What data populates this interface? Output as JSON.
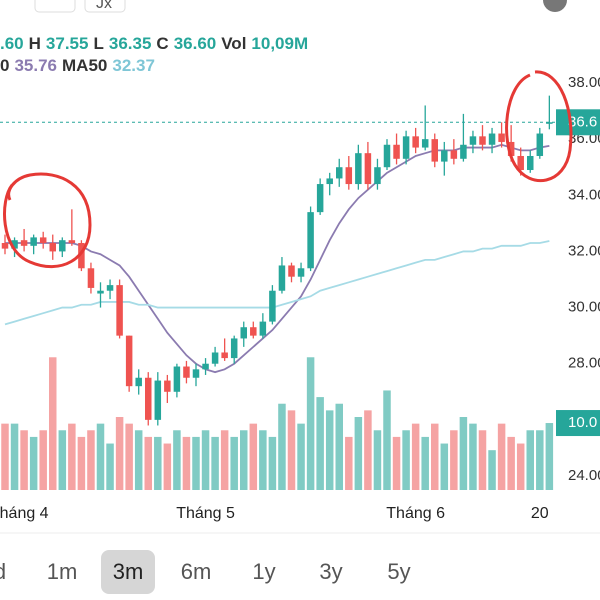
{
  "header": {
    "icon": "Jx",
    "line1": [
      {
        "text": ".60",
        "role": "num"
      },
      {
        "text": "H",
        "role": "key"
      },
      {
        "text": "37.55",
        "role": "num"
      },
      {
        "text": "L",
        "role": "key"
      },
      {
        "text": "36.35",
        "role": "num"
      },
      {
        "text": "C",
        "role": "key"
      },
      {
        "text": "36.60",
        "role": "num"
      },
      {
        "text": "Vol",
        "role": "key"
      },
      {
        "text": "10,09M",
        "role": "num"
      }
    ],
    "line2": [
      {
        "text": "0",
        "role": "key"
      },
      {
        "text": "35.76",
        "role": "ma"
      },
      {
        "text": "MA50",
        "role": "key"
      },
      {
        "text": "32.37",
        "role": "ma50"
      }
    ]
  },
  "chart_data": {
    "type": "candlestick",
    "up_color": "#26a69a",
    "down_color": "#ef5350",
    "volume_up_color": "#80cbc4",
    "volume_down_color": "#f5a3a3",
    "ylim": [
      24,
      38
    ],
    "yticks": [
      {
        "value": 38,
        "label": "38.00"
      },
      {
        "value": 36,
        "label": "36.00"
      },
      {
        "value": 34,
        "label": "34.00"
      },
      {
        "value": 32,
        "label": "32.00"
      },
      {
        "value": 30,
        "label": "30.00"
      },
      {
        "value": 28,
        "label": "28.00"
      },
      {
        "value": 24,
        "label": "24.00"
      }
    ],
    "price_label": "36.6",
    "volume_label": "10.0",
    "volume_ylim": [
      0,
      22
    ],
    "categories": [
      null,
      null,
      "háng 4",
      null,
      null,
      null,
      null,
      null,
      null,
      null,
      null,
      null,
      null,
      null,
      null,
      null,
      null,
      null,
      null,
      null,
      null,
      "Tháng 5",
      null,
      null,
      null,
      null,
      null,
      null,
      null,
      null,
      null,
      null,
      null,
      null,
      null,
      null,
      null,
      null,
      null,
      null,
      null,
      null,
      null,
      "Tháng 6",
      null,
      null,
      null,
      null,
      null,
      null,
      null,
      null,
      null,
      null,
      null,
      null,
      "20",
      null
    ],
    "open": [
      32.3,
      32.1,
      32.4,
      32.2,
      32.5,
      32.3,
      32.0,
      32.4,
      32.3,
      31.4,
      30.5,
      30.6,
      30.8,
      29.0,
      27.2,
      27.5,
      26.0,
      27.4,
      27.0,
      27.9,
      27.5,
      27.8,
      28.0,
      28.4,
      28.2,
      28.9,
      29.3,
      29.0,
      29.5,
      30.6,
      31.5,
      31.1,
      31.4,
      33.4,
      34.4,
      34.6,
      35.0,
      34.4,
      35.5,
      34.4,
      35.0,
      35.8,
      35.3,
      36.1,
      35.7,
      36.0,
      35.2,
      35.6,
      35.3,
      35.8,
      36.1,
      35.8,
      36.2,
      35.9,
      35.4,
      34.9,
      35.4,
      36.6
    ],
    "high": [
      32.6,
      32.5,
      32.8,
      32.6,
      32.7,
      32.6,
      32.5,
      33.5,
      32.4,
      31.6,
      30.9,
      31.0,
      31.0,
      29.0,
      27.8,
      27.7,
      27.7,
      27.6,
      28.0,
      28.1,
      28.0,
      28.2,
      28.6,
      28.9,
      29.0,
      29.5,
      29.5,
      29.8,
      30.8,
      31.8,
      31.6,
      31.6,
      33.6,
      34.6,
      34.8,
      35.3,
      35.4,
      35.8,
      35.9,
      35.3,
      36.0,
      36.2,
      36.3,
      36.4,
      37.2,
      36.2,
      35.9,
      36.0,
      36.9,
      36.3,
      36.5,
      36.4,
      36.6,
      36.5,
      35.7,
      35.6,
      36.4,
      37.55
    ],
    "low": [
      31.9,
      31.8,
      32.0,
      31.9,
      32.1,
      31.7,
      31.8,
      32.2,
      31.3,
      30.5,
      30.0,
      30.3,
      28.9,
      27.0,
      26.9,
      25.8,
      25.8,
      26.6,
      26.8,
      27.3,
      27.2,
      27.6,
      27.9,
      28.1,
      28.0,
      28.6,
      28.9,
      28.9,
      29.4,
      30.5,
      30.9,
      30.9,
      31.3,
      33.3,
      34.0,
      34.3,
      34.2,
      34.2,
      34.2,
      34.2,
      34.9,
      35.1,
      35.1,
      35.5,
      35.6,
      35.0,
      34.7,
      35.1,
      35.2,
      35.5,
      35.6,
      35.5,
      35.7,
      35.2,
      34.7,
      34.8,
      35.3,
      36.35
    ],
    "close": [
      32.1,
      32.4,
      32.2,
      32.5,
      32.3,
      32.0,
      32.4,
      32.3,
      31.4,
      30.7,
      30.6,
      30.8,
      29.0,
      27.2,
      27.5,
      26.0,
      27.4,
      27.0,
      27.9,
      27.5,
      27.8,
      28.0,
      28.4,
      28.2,
      28.9,
      29.3,
      29.0,
      29.5,
      30.6,
      31.5,
      31.1,
      31.4,
      33.4,
      34.4,
      34.6,
      35.0,
      34.4,
      35.5,
      34.4,
      35.0,
      35.8,
      35.3,
      36.1,
      35.7,
      36.0,
      35.2,
      35.6,
      35.3,
      35.8,
      36.1,
      35.8,
      36.2,
      35.9,
      35.4,
      34.9,
      35.4,
      36.2,
      36.6
    ],
    "volume": [
      10,
      10,
      9,
      8,
      9,
      20,
      9,
      10,
      8,
      9,
      10,
      7,
      11,
      10,
      9,
      8,
      8,
      7,
      9,
      8,
      8,
      9,
      8,
      9,
      8,
      9,
      10,
      9,
      8,
      13,
      12,
      10,
      20,
      14,
      12,
      13,
      8,
      11,
      12,
      9,
      15,
      8,
      9,
      10,
      8,
      10,
      7,
      9,
      11,
      10,
      9,
      6,
      10,
      8,
      7,
      9,
      9,
      10.09
    ],
    "series": [
      {
        "name": "0",
        "color": "#8b7bb0",
        "values": [
          32.3,
          32.3,
          32.3,
          32.3,
          32.3,
          32.3,
          32.3,
          32.3,
          32.2,
          32.0,
          31.9,
          31.7,
          31.5,
          31.1,
          30.6,
          30.1,
          29.6,
          29.1,
          28.7,
          28.3,
          28.0,
          27.8,
          27.7,
          27.8,
          28.0,
          28.3,
          28.6,
          28.9,
          29.2,
          29.6,
          30.0,
          30.4,
          31.0,
          31.7,
          32.4,
          33.0,
          33.5,
          33.9,
          34.2,
          34.5,
          34.8,
          35.0,
          35.2,
          35.4,
          35.5,
          35.6,
          35.6,
          35.6,
          35.7,
          35.7,
          35.7,
          35.7,
          35.8,
          35.7,
          35.6,
          35.6,
          35.7,
          35.76
        ]
      },
      {
        "name": "MA50",
        "color": "#a6dbe6",
        "values": [
          29.4,
          29.5,
          29.6,
          29.7,
          29.8,
          29.9,
          30.0,
          30.0,
          30.1,
          30.1,
          30.2,
          30.2,
          30.2,
          30.2,
          30.1,
          30.1,
          30.0,
          30.0,
          30.0,
          30.0,
          30.0,
          30.0,
          30.0,
          30.0,
          30.0,
          30.0,
          30.0,
          30.0,
          30.0,
          30.1,
          30.2,
          30.3,
          30.4,
          30.6,
          30.7,
          30.8,
          30.9,
          31.0,
          31.1,
          31.2,
          31.3,
          31.4,
          31.5,
          31.6,
          31.7,
          31.7,
          31.8,
          31.9,
          32.0,
          32.0,
          32.1,
          32.1,
          32.2,
          32.2,
          32.2,
          32.3,
          32.3,
          32.37
        ]
      }
    ]
  },
  "tabs": {
    "items": [
      "d",
      "1m",
      "3m",
      "6m",
      "1y",
      "3y",
      "5y"
    ],
    "selected": 2
  }
}
